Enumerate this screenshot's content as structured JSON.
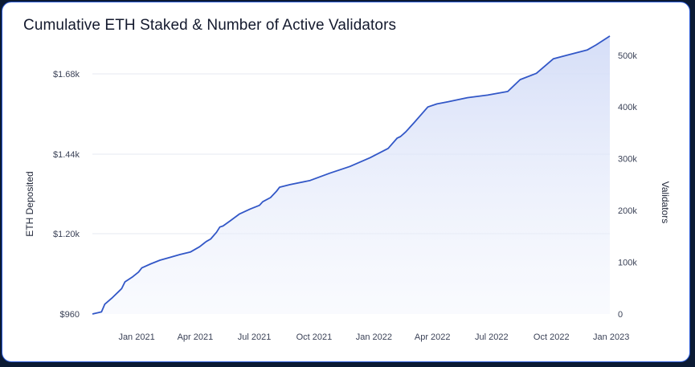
{
  "chart_data": {
    "type": "area",
    "title": "Cumulative ETH Staked & Number of Active Validators",
    "y_left_label": "ETH Deposited",
    "y_right_label": "Validators",
    "y_left_ticks": [
      "$960",
      "$1.20k",
      "$1.44k",
      "$1.68k"
    ],
    "y_right_ticks": [
      "0",
      "100k",
      "200k",
      "300k",
      "400k",
      "500k"
    ],
    "x_ticks": [
      "Jan 2021",
      "Apr 2021",
      "Jul 2021",
      "Oct 2021",
      "Jan 2022",
      "Apr 2022",
      "Jul 2022",
      "Oct 2022",
      "Jan 2023"
    ],
    "ylim_right": [
      0,
      540000
    ],
    "grid": true,
    "series": [
      {
        "color": "#3257c7",
        "x": [
          "2020-12-01",
          "2020-12-15",
          "2020-12-20",
          "2021-01-01",
          "2021-01-10",
          "2021-01-15",
          "2021-01-20",
          "2021-02-01",
          "2021-02-10",
          "2021-02-15",
          "2021-03-01",
          "2021-03-15",
          "2021-04-01",
          "2021-04-15",
          "2021-05-01",
          "2021-05-15",
          "2021-05-25",
          "2021-06-01",
          "2021-06-10",
          "2021-06-15",
          "2021-06-20",
          "2021-07-01",
          "2021-07-15",
          "2021-08-01",
          "2021-08-15",
          "2021-08-20",
          "2021-09-01",
          "2021-09-10",
          "2021-09-15",
          "2021-10-01",
          "2021-11-01",
          "2021-12-01",
          "2022-01-01",
          "2022-02-01",
          "2022-03-01",
          "2022-03-15",
          "2022-03-20",
          "2022-03-28",
          "2022-04-10",
          "2022-05-01",
          "2022-05-15",
          "2022-06-01",
          "2022-07-01",
          "2022-08-01",
          "2022-09-01",
          "2022-09-20",
          "2022-10-15",
          "2022-11-10",
          "2022-12-01",
          "2023-01-01",
          "2023-01-15",
          "2023-02-05"
        ],
        "values": [
          0,
          4000,
          19000,
          32000,
          43000,
          49000,
          62000,
          72000,
          81000,
          89000,
          97000,
          104000,
          110000,
          115000,
          120000,
          130000,
          140000,
          145000,
          158000,
          168000,
          170000,
          180000,
          193000,
          203000,
          210000,
          217000,
          225000,
          237000,
          245000,
          250000,
          258000,
          272000,
          285000,
          302000,
          320000,
          340000,
          343000,
          352000,
          370000,
          400000,
          406000,
          410000,
          418000,
          423000,
          430000,
          453000,
          465000,
          493000,
          500000,
          510000,
          520000,
          537000
        ]
      }
    ]
  }
}
